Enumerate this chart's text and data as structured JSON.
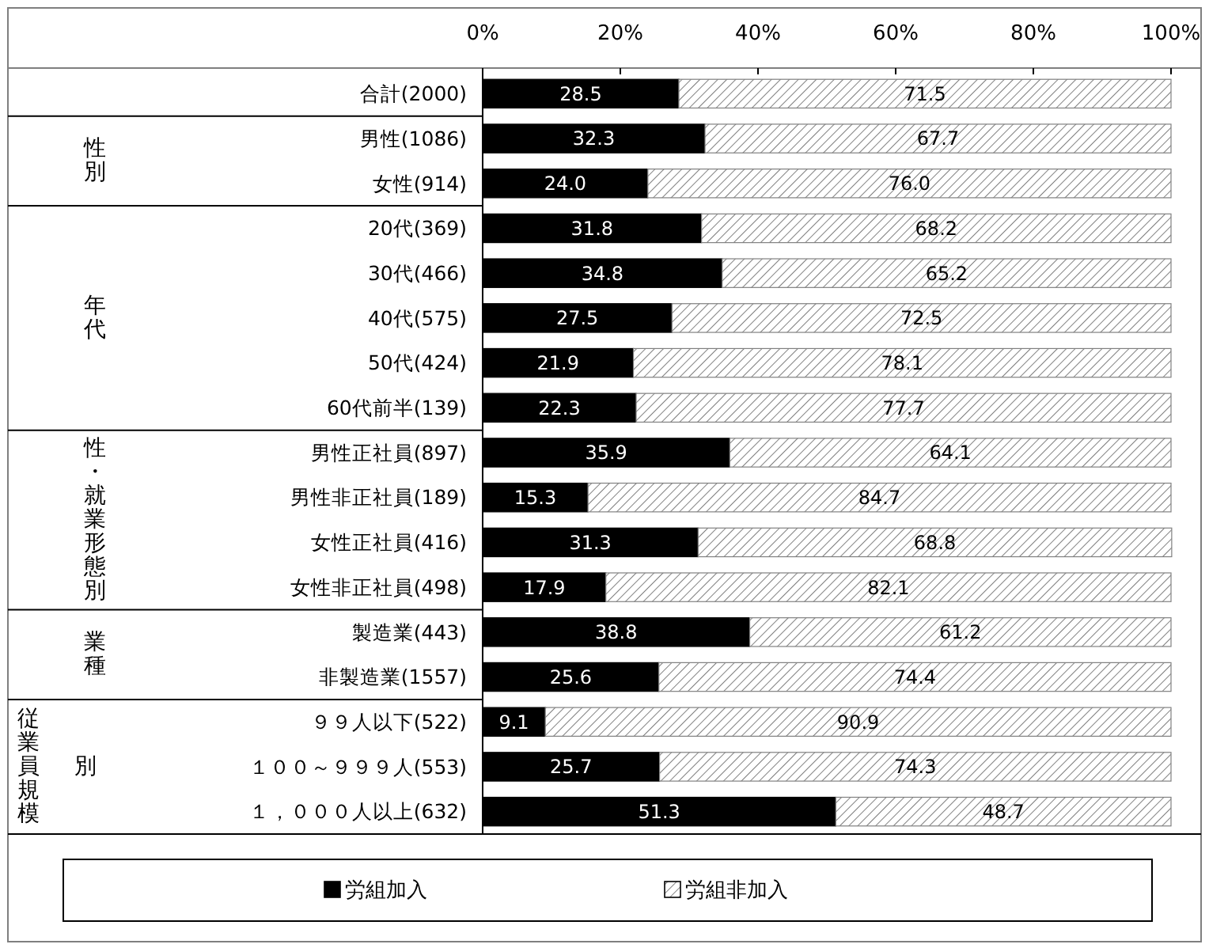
{
  "chart_data": {
    "type": "bar",
    "orientation": "horizontal",
    "stacked": true,
    "categories": [
      "合計(2000)",
      "男性(1086)",
      "女性(914)",
      "20代(369)",
      "30代(466)",
      "40代(575)",
      "50代(424)",
      "60代前半(139)",
      "男性正社員(897)",
      "男性非正社員(189)",
      "女性正社員(416)",
      "女性非正社員(498)",
      "製造業(443)",
      "非製造業(1557)",
      "９９人以下(522)",
      "１００～９９９人(553)",
      "１，０００人以上(632)"
    ],
    "series": [
      {
        "name": "労組加入",
        "color": "#000000",
        "values": [
          28.5,
          32.3,
          24.0,
          31.8,
          34.8,
          27.5,
          21.9,
          22.3,
          35.9,
          15.3,
          31.3,
          17.9,
          38.8,
          25.6,
          9.1,
          25.7,
          51.3
        ],
        "value_labels": [
          "28.5",
          "32.3",
          "24.0",
          "31.8",
          "34.8",
          "27.5",
          "21.9",
          "22.3",
          "35.9",
          "15.3",
          "31.3",
          "17.9",
          "38.8",
          "25.6",
          "9.1",
          "25.7",
          "51.3"
        ]
      },
      {
        "name": "労組非加入",
        "color": "#808080",
        "values": [
          71.5,
          67.7,
          76.0,
          68.2,
          65.2,
          72.5,
          78.1,
          77.7,
          64.1,
          84.7,
          68.8,
          82.1,
          61.2,
          74.4,
          90.9,
          74.3,
          48.7
        ],
        "value_labels": [
          "71.5",
          "67.7",
          "76.0",
          "68.2",
          "65.2",
          "72.5",
          "78.1",
          "77.7",
          "64.1",
          "84.7",
          "68.8",
          "82.1",
          "61.2",
          "74.4",
          "90.9",
          "74.3",
          "48.7"
        ]
      }
    ],
    "xlim": [
      0,
      100
    ],
    "xticks": [
      {
        "value": 0,
        "label": "0%"
      },
      {
        "value": 20,
        "label": "20%"
      },
      {
        "value": 40,
        "label": "40%"
      },
      {
        "value": 60,
        "label": "60%"
      },
      {
        "value": 80,
        "label": "80%"
      },
      {
        "value": 100,
        "label": "100%"
      }
    ],
    "annotations": [
      "性別",
      "年代",
      "性・就業形態別",
      "業種",
      "従業員規模別"
    ],
    "legend": "bottom"
  }
}
